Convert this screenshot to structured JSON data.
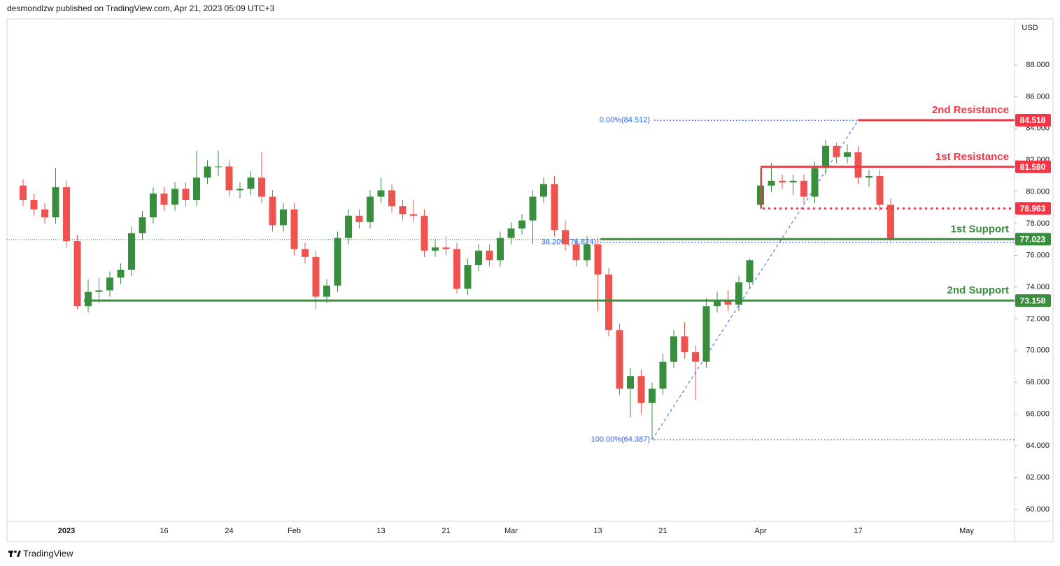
{
  "header": "desmondlzw published on TradingView.com, Apr 21, 2023 05:09 UTC+3",
  "footer": "TradingView",
  "chart_data": {
    "type": "candlestick",
    "currency": "USD",
    "up_color": "#388e3c",
    "down_color": "#ef5350",
    "ylim": [
      59.25,
      90.86
    ],
    "yticks": [
      {
        "value": 60,
        "label": "60.000"
      },
      {
        "value": 62,
        "label": "62.000"
      },
      {
        "value": 64,
        "label": "64.000"
      },
      {
        "value": 66,
        "label": "66.000"
      },
      {
        "value": 68,
        "label": "68.000"
      },
      {
        "value": 70,
        "label": "70.000"
      },
      {
        "value": 72,
        "label": "72.000"
      },
      {
        "value": 74,
        "label": "74.000"
      },
      {
        "value": 76,
        "label": "76.000"
      },
      {
        "value": 78,
        "label": "78.000"
      },
      {
        "value": 80,
        "label": "80.000"
      },
      {
        "value": 82,
        "label": "82.000"
      },
      {
        "value": 84,
        "label": "84.000"
      },
      {
        "value": 86,
        "label": "86.000"
      },
      {
        "value": 88,
        "label": "88.000"
      }
    ],
    "categories": [
      null,
      null,
      null,
      null,
      "2023",
      null,
      null,
      null,
      null,
      null,
      null,
      null,
      null,
      "16",
      null,
      null,
      null,
      null,
      null,
      "24",
      null,
      null,
      null,
      null,
      null,
      "Feb",
      null,
      null,
      null,
      null,
      null,
      null,
      null,
      "13",
      null,
      null,
      null,
      null,
      null,
      "21",
      null,
      null,
      null,
      null,
      null,
      "Mar",
      null,
      null,
      null,
      null,
      null,
      null,
      null,
      "13",
      null,
      null,
      null,
      null,
      null,
      "21",
      null,
      null,
      null,
      null,
      null,
      null,
      null,
      null,
      "Apr",
      null,
      null,
      null,
      null,
      null,
      null,
      null,
      null,
      "17",
      null,
      null,
      null,
      null,
      null,
      null,
      null,
      null,
      null,
      "May",
      null,
      null
    ],
    "open": [
      80.4,
      79.5,
      78.9,
      78.4,
      80.3,
      76.9,
      72.8,
      73.7,
      73.8,
      74.6,
      75.1,
      77.4,
      78.4,
      79.9,
      79.2,
      80.2,
      79.5,
      80.9,
      81.6,
      81.6,
      80.1,
      80.2,
      80.9,
      79.7,
      77.9,
      78.9,
      76.4,
      75.9,
      73.4,
      74.1,
      77.1,
      78.5,
      78.1,
      79.7,
      80.1,
      79.1,
      78.6,
      78.5,
      76.3,
      76.5,
      76.4,
      73.9,
      75.4,
      76.3,
      75.7,
      77.1,
      77.7,
      78.2,
      79.7,
      80.5,
      77.6,
      76.7,
      75.7,
      76.7,
      74.8,
      71.3,
      67.6,
      68.4,
      66.7,
      67.6,
      69.3,
      70.9,
      69.9,
      69.3,
      72.8,
      73.2,
      72.9,
      74.3,
      79.2,
      80.4,
      80.7,
      80.6,
      80.7,
      79.7,
      81.5,
      82.9,
      82.2,
      82.5,
      80.9,
      81.0,
      79.2,
      null,
      null,
      null,
      null,
      null,
      null,
      null,
      null,
      null
    ],
    "high": [
      80.8,
      79.9,
      79.3,
      81.5,
      80.7,
      77.3,
      74.5,
      74.6,
      75.0,
      75.5,
      77.8,
      78.8,
      80.3,
      80.3,
      80.6,
      80.6,
      82.6,
      82.0,
      82.6,
      82.0,
      80.6,
      81.3,
      82.5,
      80.1,
      79.3,
      79.3,
      76.8,
      76.3,
      74.5,
      77.5,
      78.9,
      78.9,
      80.1,
      80.9,
      80.5,
      79.5,
      79.5,
      78.9,
      77.0,
      77.2,
      76.8,
      75.8,
      76.7,
      76.7,
      77.5,
      78.1,
      78.6,
      80.1,
      80.9,
      81.0,
      78.2,
      77.1,
      77.2,
      77.1,
      75.2,
      71.7,
      68.9,
      68.8,
      68.0,
      69.8,
      71.3,
      71.8,
      70.3,
      73.3,
      73.7,
      73.8,
      74.7,
      75.8,
      81.5,
      81.8,
      81.1,
      81.1,
      81.1,
      81.9,
      83.3,
      83.1,
      83.0,
      82.9,
      81.4,
      81.4,
      79.6,
      null,
      null,
      null,
      null,
      null,
      null,
      null,
      null,
      null
    ],
    "low": [
      79.1,
      78.5,
      78.0,
      78.0,
      76.5,
      72.6,
      72.4,
      73.0,
      73.4,
      74.2,
      74.7,
      77.0,
      78.0,
      78.8,
      78.8,
      79.1,
      79.1,
      80.5,
      81.0,
      79.7,
      79.6,
      79.8,
      79.3,
      77.5,
      77.5,
      76.0,
      75.5,
      72.6,
      73.0,
      73.7,
      76.7,
      77.7,
      77.7,
      79.3,
      78.7,
      78.2,
      78.1,
      75.9,
      75.9,
      76.0,
      73.6,
      73.5,
      75.0,
      75.3,
      75.3,
      76.7,
      77.3,
      76.7,
      79.3,
      77.2,
      76.3,
      75.3,
      75.3,
      72.5,
      70.9,
      67.2,
      65.8,
      66.0,
      64.39,
      67.2,
      68.9,
      69.5,
      66.9,
      68.9,
      72.4,
      72.5,
      72.5,
      73.9,
      78.9,
      80.0,
      80.2,
      79.8,
      79.3,
      79.3,
      81.1,
      81.8,
      81.8,
      80.5,
      80.3,
      78.8,
      76.9,
      null,
      null,
      null,
      null,
      null,
      null,
      null,
      null,
      null
    ],
    "close": [
      79.5,
      78.9,
      78.4,
      80.3,
      76.9,
      72.8,
      73.7,
      73.8,
      74.6,
      75.1,
      77.4,
      78.4,
      79.9,
      79.2,
      80.2,
      79.5,
      80.9,
      81.6,
      81.6,
      80.1,
      80.2,
      80.9,
      79.7,
      77.9,
      78.9,
      76.4,
      75.9,
      73.4,
      74.1,
      77.1,
      78.5,
      78.1,
      79.7,
      80.1,
      79.1,
      78.6,
      78.5,
      76.3,
      76.5,
      76.4,
      73.9,
      75.4,
      76.3,
      75.7,
      77.1,
      77.7,
      78.2,
      79.7,
      80.5,
      77.6,
      76.7,
      75.7,
      76.7,
      74.8,
      71.3,
      67.6,
      68.4,
      66.7,
      67.6,
      69.3,
      70.9,
      69.9,
      69.3,
      72.8,
      73.2,
      72.9,
      74.3,
      75.7,
      80.4,
      80.7,
      80.6,
      80.7,
      79.7,
      81.5,
      82.9,
      82.2,
      82.5,
      80.9,
      81.0,
      79.2,
      77.0,
      null,
      null,
      null,
      null,
      null,
      null,
      null,
      null,
      null
    ],
    "levels": [
      {
        "name": "2nd Resistance",
        "value": 84.518,
        "color": "#f23645",
        "style": "solid"
      },
      {
        "name": "1st Resistance",
        "value": 81.58,
        "label": "81.580",
        "color": "#f23645",
        "style": "solid"
      },
      {
        "value": 78.963,
        "color": "#f23645",
        "style": "dotted"
      },
      {
        "name": "1st Support",
        "value": 77.023,
        "color": "#388e3c",
        "style": "solid"
      },
      {
        "name": "2nd Support",
        "value": 73.158,
        "color": "#388e3c",
        "style": "solid"
      }
    ],
    "fib": [
      {
        "label": "0.00%(84.512)",
        "value": 84.512
      },
      {
        "label": "38.20%(76.824)",
        "value": 76.824
      },
      {
        "label": "100.00%(64.387)",
        "value": 64.387
      }
    ],
    "fib_color": "#2962ff"
  }
}
